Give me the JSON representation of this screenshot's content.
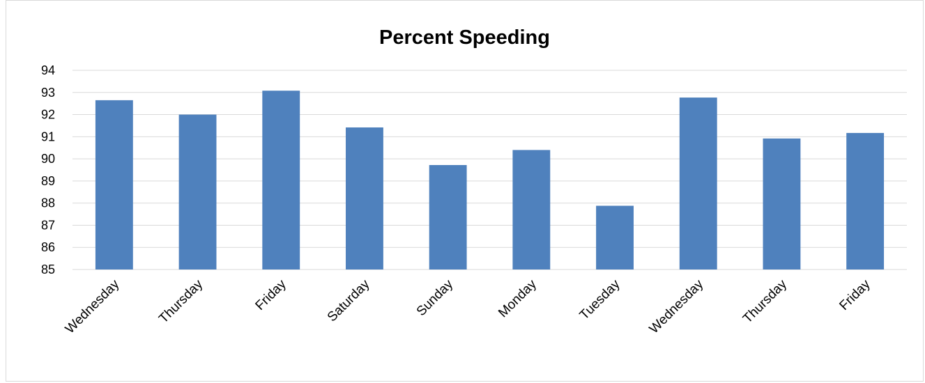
{
  "chart_data": {
    "type": "bar",
    "title": "Percent Speeding",
    "xlabel": "",
    "ylabel": "",
    "categories": [
      "Wednesday",
      "Thursday",
      "Friday",
      "Saturday",
      "Sunday",
      "Monday",
      "Tuesday",
      "Wednesday",
      "Thursday",
      "Friday"
    ],
    "values": [
      92.65,
      92.0,
      93.08,
      91.42,
      89.72,
      90.4,
      87.88,
      92.77,
      90.92,
      91.17
    ],
    "ylim": [
      85,
      94
    ],
    "yticks": [
      85,
      86,
      87,
      88,
      89,
      90,
      91,
      92,
      93,
      94
    ],
    "grid": true,
    "legend": "none",
    "bar_color": "#4f81bd",
    "grid_color": "#d9d9d9"
  }
}
